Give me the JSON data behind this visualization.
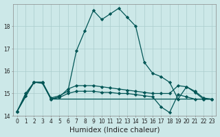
{
  "xlabel": "Humidex (Indice chaleur)",
  "ylabel": "",
  "bg_color": "#cce8e8",
  "grid_color": "#aacccc",
  "line_color": "#005555",
  "x_values": [
    0,
    1,
    2,
    3,
    4,
    5,
    6,
    7,
    8,
    9,
    10,
    11,
    12,
    13,
    14,
    15,
    16,
    17,
    18,
    19,
    20,
    21,
    22,
    23
  ],
  "line1": [
    14.2,
    15.0,
    15.5,
    15.5,
    14.8,
    14.9,
    15.1,
    16.9,
    17.8,
    18.7,
    18.3,
    18.55,
    18.8,
    18.4,
    18.0,
    16.4,
    15.9,
    15.75,
    15.5,
    14.75,
    15.3,
    15.05,
    14.75,
    14.75
  ],
  "line2": [
    14.2,
    14.9,
    15.5,
    15.5,
    14.75,
    14.85,
    15.2,
    15.35,
    15.35,
    15.35,
    15.3,
    15.25,
    15.2,
    15.15,
    15.1,
    15.05,
    15.0,
    15.0,
    15.0,
    15.35,
    15.3,
    15.1,
    14.8,
    14.75
  ],
  "line3": [
    14.2,
    14.85,
    15.5,
    15.45,
    14.75,
    14.75,
    14.75,
    14.75,
    14.75,
    14.75,
    14.75,
    14.75,
    14.75,
    14.75,
    14.75,
    14.75,
    14.75,
    14.75,
    14.75,
    14.75,
    14.75,
    14.75,
    14.75,
    14.75
  ],
  "line4": [
    14.2,
    14.88,
    15.5,
    15.48,
    14.75,
    14.82,
    15.0,
    15.1,
    15.1,
    15.1,
    15.05,
    15.05,
    15.0,
    15.0,
    14.95,
    14.9,
    14.85,
    14.4,
    14.15,
    14.95,
    14.85,
    14.75,
    14.75,
    14.75
  ],
  "ylim": [
    14.0,
    19.0
  ],
  "xlim": [
    -0.5,
    23.5
  ],
  "yticks": [
    14,
    15,
    16,
    17,
    18
  ],
  "xticks": [
    0,
    1,
    2,
    3,
    4,
    5,
    6,
    7,
    8,
    9,
    10,
    11,
    12,
    13,
    14,
    15,
    16,
    17,
    18,
    19,
    20,
    21,
    22,
    23
  ],
  "marker": "D",
  "markersize": 2.2,
  "linewidth": 0.9,
  "tick_fontsize": 5.5,
  "label_fontsize": 7.5
}
